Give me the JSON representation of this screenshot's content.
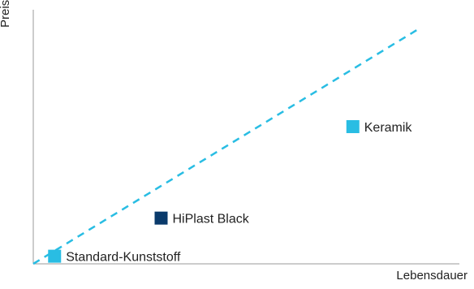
{
  "chart_data": {
    "type": "scatter",
    "title": "",
    "xlabel": "Lebensdauer",
    "ylabel": "Preis",
    "xlim": [
      0,
      100
    ],
    "ylim": [
      0,
      100
    ],
    "grid": false,
    "points": [
      {
        "label": "Standard-Kunststoff",
        "x": 5,
        "y": 3,
        "color": "#29bde3"
      },
      {
        "label": "HiPlast Black",
        "x": 30,
        "y": 18,
        "color": "#0a3a6b"
      },
      {
        "label": "Keramik",
        "x": 75,
        "y": 54,
        "color": "#29bde3"
      }
    ],
    "trendline": {
      "style": "dashed",
      "color": "#29bde3",
      "from": [
        0,
        0
      ],
      "to": [
        90,
        92
      ]
    }
  }
}
